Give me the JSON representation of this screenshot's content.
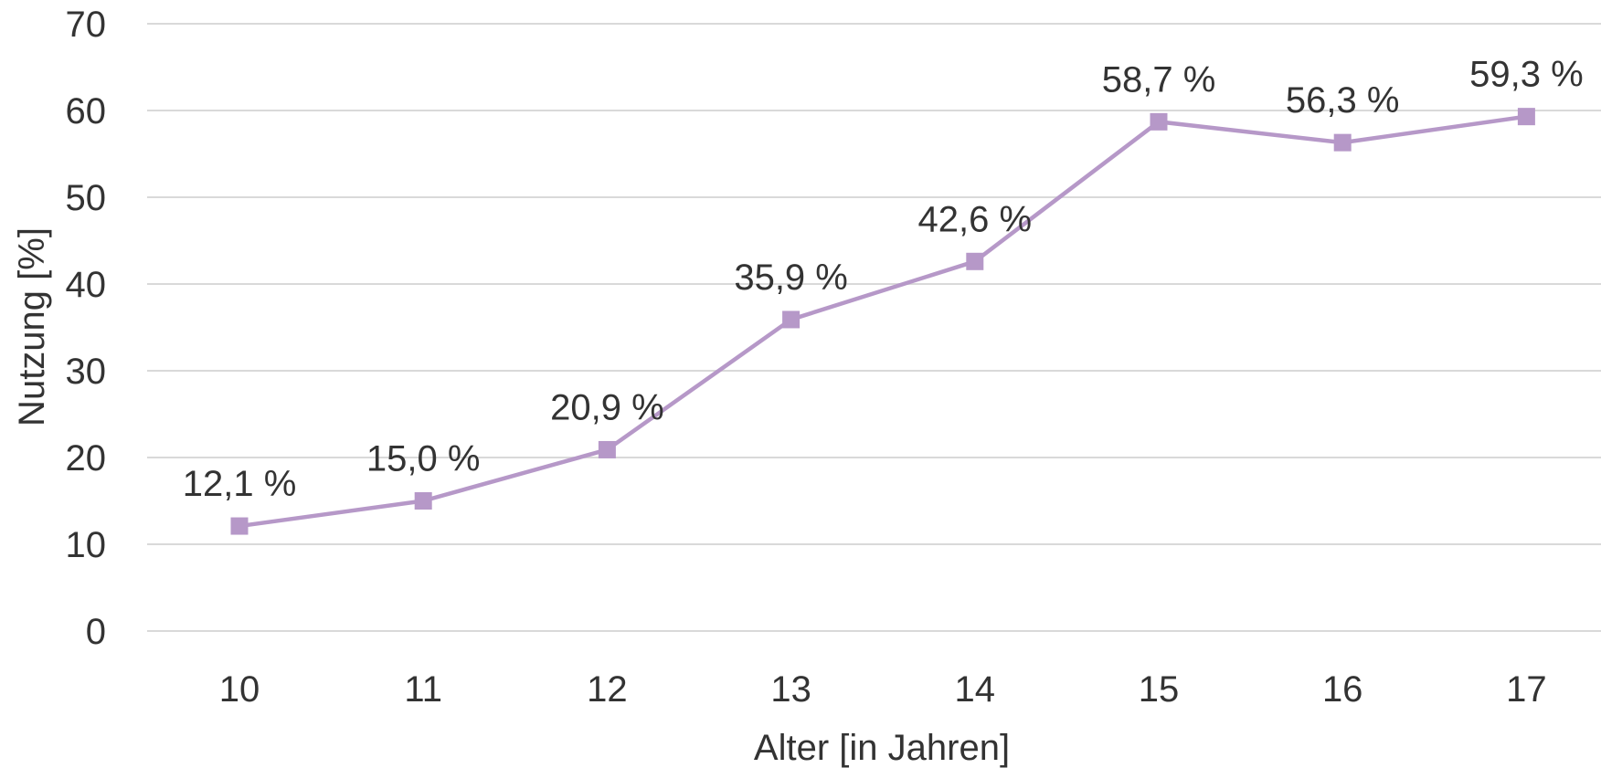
{
  "chart_data": {
    "type": "line",
    "title": "",
    "xlabel": "Alter [in Jahren]",
    "ylabel": "Nutzung [%]",
    "ylim": [
      0,
      70
    ],
    "yticks": [
      0,
      10,
      20,
      30,
      40,
      50,
      60,
      70
    ],
    "grid": "horizontal",
    "legend": "none",
    "categories": [
      "10",
      "11",
      "12",
      "13",
      "14",
      "15",
      "16",
      "17"
    ],
    "series": [
      {
        "values": [
          12.1,
          15.0,
          20.9,
          35.9,
          42.6,
          58.7,
          56.3,
          59.3
        ],
        "data_labels": [
          "12,1 %",
          "15,0 %",
          "20,9 %",
          "35,9 %",
          "42,6 %",
          "58,7 %",
          "56,3 %",
          "59,3 %"
        ],
        "color": "#b698c8",
        "marker": "square"
      }
    ],
    "colors": {
      "grid": "#d9d9d9",
      "text": "#333333"
    }
  }
}
